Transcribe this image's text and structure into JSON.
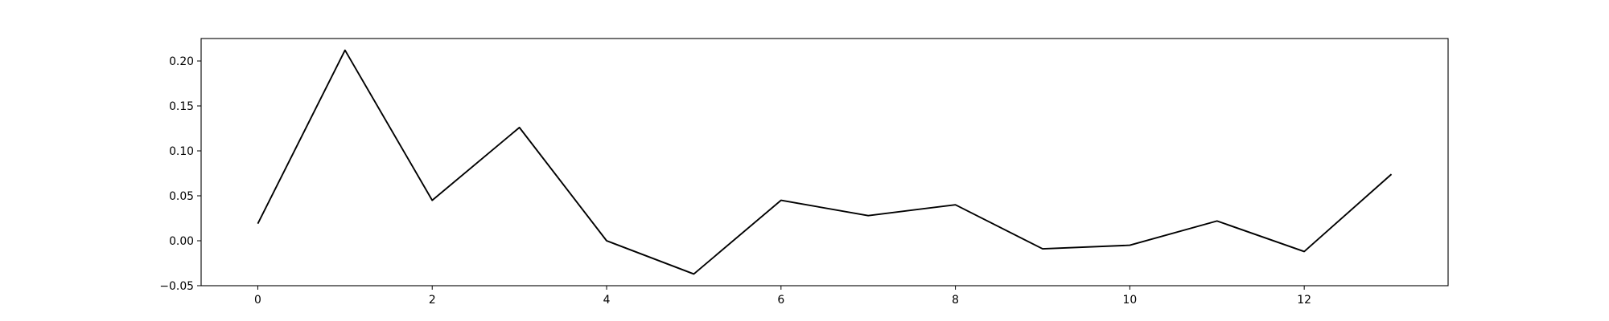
{
  "chart_data": {
    "type": "line",
    "title": "",
    "xlabel": "",
    "ylabel": "",
    "x": [
      0,
      1,
      2,
      3,
      4,
      5,
      6,
      7,
      8,
      9,
      10,
      11,
      12,
      13
    ],
    "series": [
      {
        "values": [
          0.019,
          0.212,
          0.045,
          0.126,
          0.0,
          -0.037,
          0.045,
          0.028,
          0.04,
          -0.009,
          -0.005,
          0.022,
          -0.012,
          0.074
        ],
        "color": "#000000"
      }
    ],
    "xlim": [
      -0.65,
      13.65
    ],
    "ylim": [
      -0.05,
      0.225
    ],
    "x_ticks": [
      0,
      2,
      4,
      6,
      8,
      10,
      12
    ],
    "x_tick_labels": [
      "0",
      "2",
      "4",
      "6",
      "8",
      "10",
      "12"
    ],
    "y_ticks": [
      -0.05,
      0.0,
      0.05,
      0.1,
      0.15,
      0.2
    ],
    "y_tick_labels": [
      "−0.05",
      "0.00",
      "0.05",
      "0.10",
      "0.15",
      "0.20"
    ],
    "grid": false,
    "legend": "none"
  }
}
